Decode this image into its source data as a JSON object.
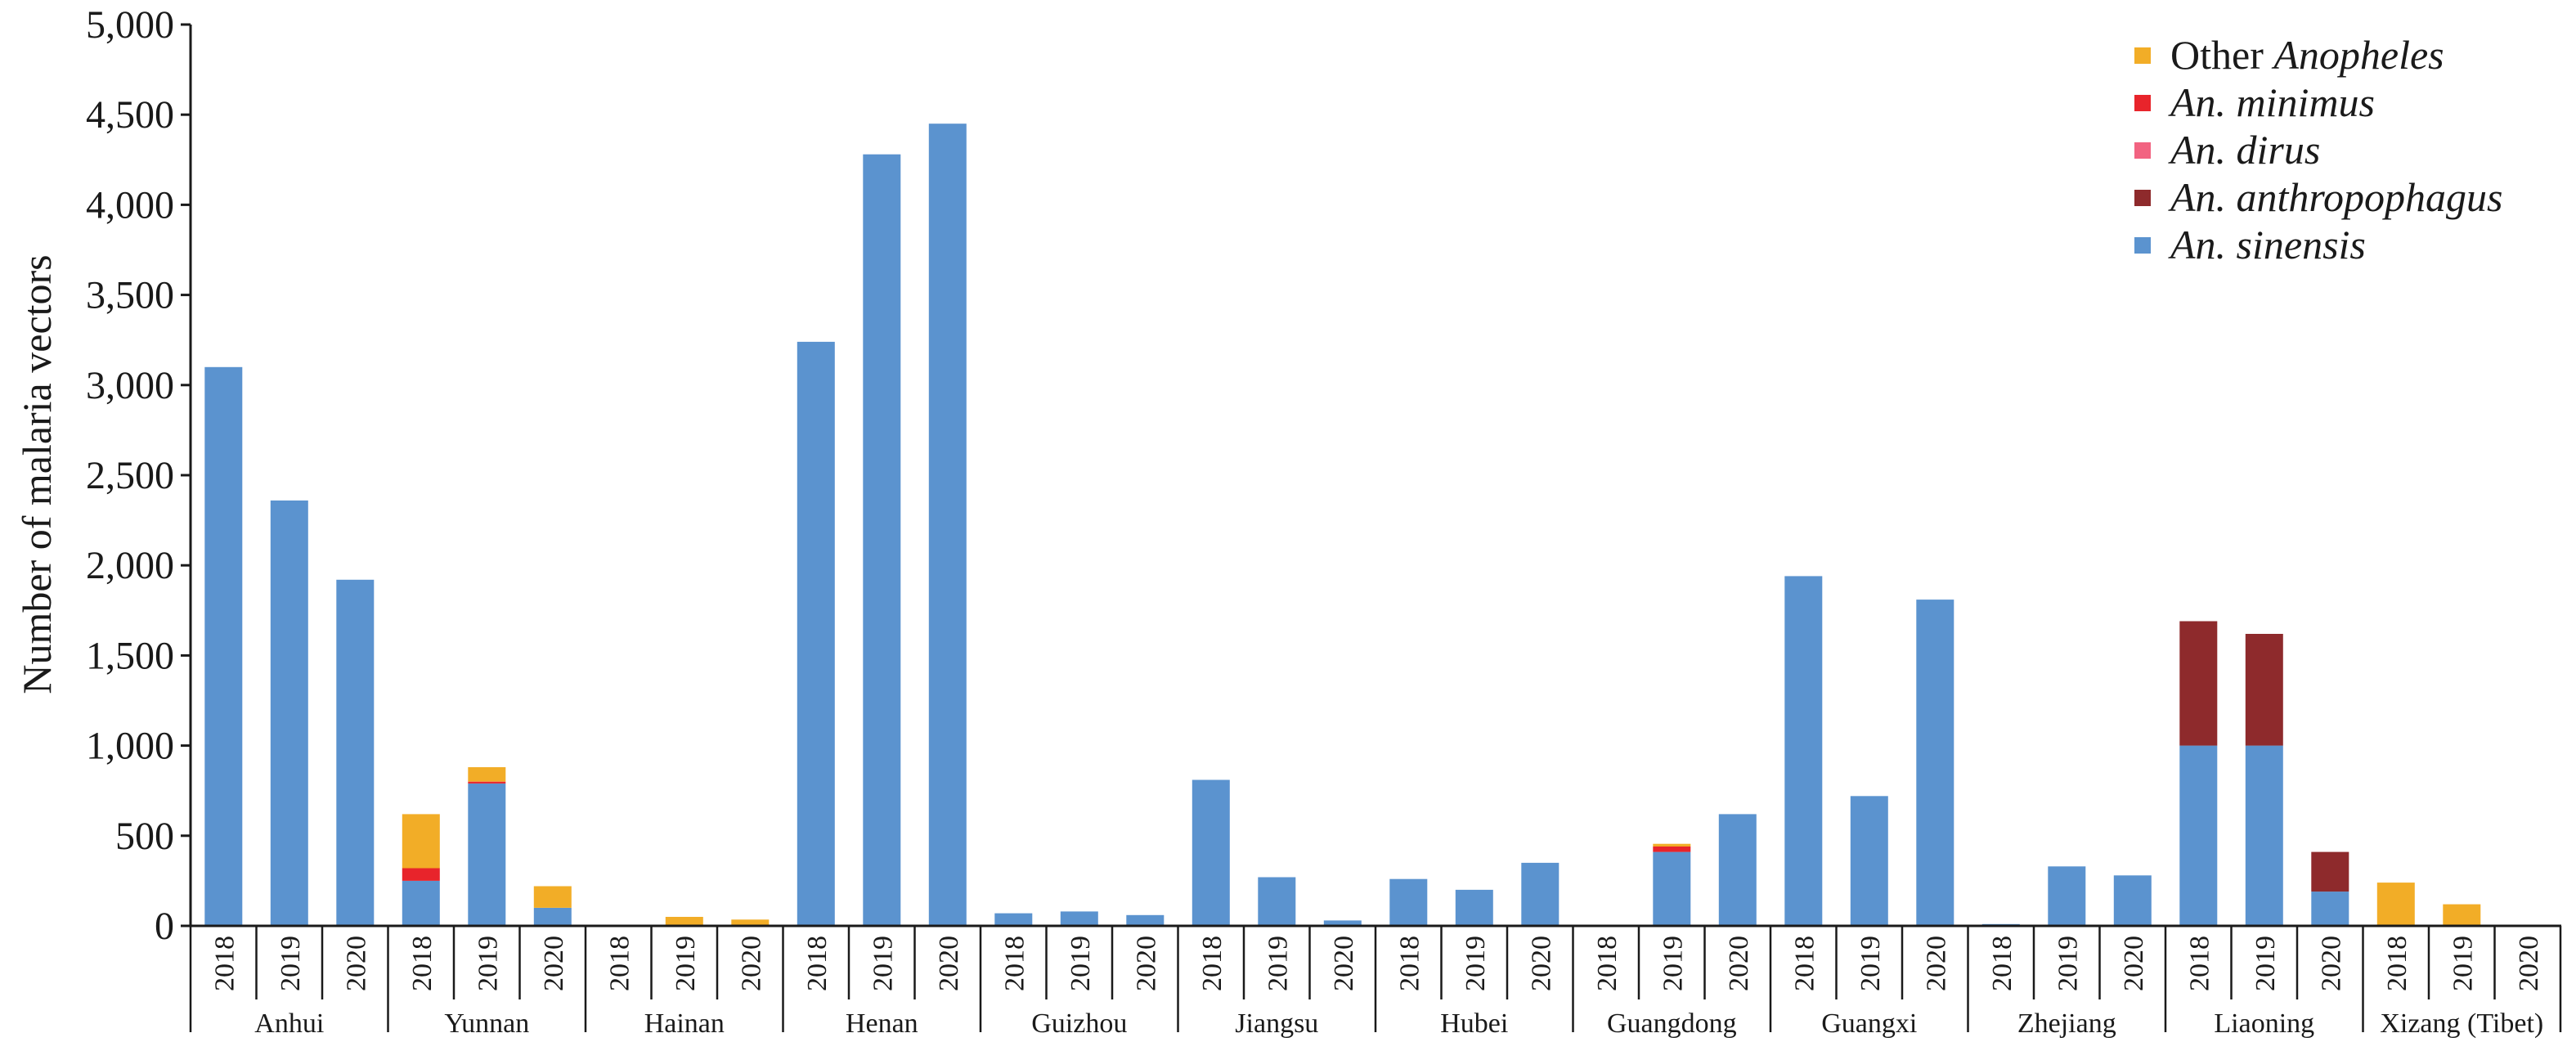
{
  "chart_data": {
    "type": "bar",
    "stacked": true,
    "ylabel": "Number of malaria vectors",
    "xlabel": "",
    "ylim": [
      0,
      5000
    ],
    "yticks": [
      0,
      500,
      1000,
      1500,
      2000,
      2500,
      3000,
      3500,
      4000,
      4500,
      5000
    ],
    "ytick_labels": [
      "0",
      "500",
      "1,000",
      "1,500",
      "2,000",
      "2,500",
      "3,000",
      "3,500",
      "4,000",
      "4,500",
      "5,000"
    ],
    "grid": false,
    "legend_position": "top-right",
    "years": [
      "2018",
      "2019",
      "2020"
    ],
    "provinces": [
      "Anhui",
      "Yunnan",
      "Hainan",
      "Henan",
      "Guizhou",
      "Jiangsu",
      "Hubei",
      "Guangdong",
      "Guangxi",
      "Zhejiang",
      "Liaoning",
      "Xizang (Tibet)"
    ],
    "legend": [
      {
        "prefix": "Other ",
        "italic": "Anopheles",
        "series_index": 4
      },
      {
        "prefix": "",
        "italic": "An. minimus",
        "series_index": 3
      },
      {
        "prefix": "",
        "italic": "An. dirus",
        "series_index": 2
      },
      {
        "prefix": "",
        "italic": "An. anthropophagus",
        "series_index": 1
      },
      {
        "prefix": "",
        "italic": "An. sinensis",
        "series_index": 0
      }
    ],
    "series": [
      {
        "name": "An. sinensis",
        "color": "#5b93cf",
        "values": [
          3100,
          2360,
          1920,
          250,
          790,
          100,
          5,
          0,
          0,
          3240,
          4280,
          4450,
          70,
          80,
          60,
          810,
          270,
          30,
          260,
          200,
          350,
          0,
          410,
          620,
          1940,
          720,
          1810,
          10,
          330,
          280,
          1000,
          1000,
          190,
          0,
          0,
          0
        ]
      },
      {
        "name": "An. anthropophagus",
        "color": "#8e2a2c",
        "values": [
          0,
          0,
          0,
          0,
          0,
          0,
          0,
          0,
          0,
          0,
          0,
          0,
          0,
          0,
          0,
          0,
          0,
          0,
          0,
          0,
          0,
          0,
          0,
          0,
          0,
          0,
          0,
          0,
          0,
          0,
          690,
          620,
          220,
          0,
          0,
          0
        ]
      },
      {
        "name": "An. dirus",
        "color": "#f26381",
        "values": [
          0,
          0,
          0,
          0,
          0,
          0,
          0,
          0,
          0,
          0,
          0,
          0,
          0,
          0,
          0,
          0,
          0,
          0,
          0,
          0,
          0,
          0,
          0,
          0,
          0,
          0,
          0,
          0,
          0,
          0,
          0,
          0,
          0,
          0,
          0,
          0
        ]
      },
      {
        "name": "An. minimus",
        "color": "#e8242b",
        "values": [
          0,
          0,
          0,
          70,
          10,
          0,
          0,
          0,
          0,
          0,
          0,
          0,
          0,
          0,
          0,
          0,
          0,
          0,
          0,
          0,
          0,
          0,
          30,
          0,
          0,
          0,
          0,
          0,
          0,
          0,
          0,
          0,
          0,
          0,
          0,
          0
        ]
      },
      {
        "name": "Other Anopheles",
        "color": "#f2ad27",
        "values": [
          0,
          0,
          0,
          300,
          80,
          120,
          0,
          50,
          35,
          0,
          0,
          0,
          0,
          0,
          0,
          0,
          0,
          0,
          0,
          0,
          0,
          0,
          15,
          0,
          0,
          0,
          0,
          0,
          0,
          0,
          0,
          0,
          0,
          240,
          120,
          0
        ]
      }
    ]
  }
}
